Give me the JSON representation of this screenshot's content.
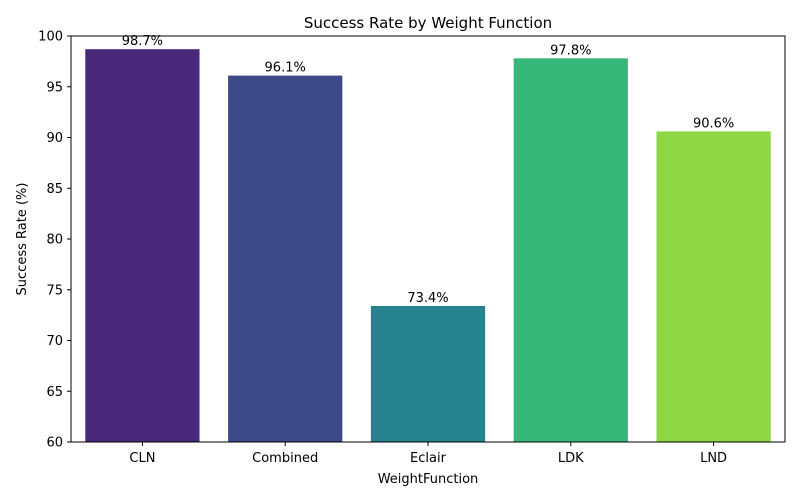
{
  "chart_data": {
    "type": "bar",
    "title": "Success Rate by Weight Function",
    "xlabel": "WeightFunction",
    "ylabel": "Success Rate (%)",
    "categories": [
      "CLN",
      "Combined",
      "Eclair",
      "LDK",
      "LND"
    ],
    "values": [
      98.7,
      96.1,
      73.4,
      97.8,
      90.6
    ],
    "data_labels": [
      "98.7%",
      "96.1%",
      "73.4%",
      "97.8%",
      "90.6%"
    ],
    "colors": [
      "#482878",
      "#3e4989",
      "#26828e",
      "#35b779",
      "#8fd744"
    ],
    "ylim": [
      60,
      100
    ],
    "yticks": [
      60,
      65,
      70,
      75,
      80,
      85,
      90,
      95,
      100
    ],
    "grid": false,
    "legend": "none"
  }
}
